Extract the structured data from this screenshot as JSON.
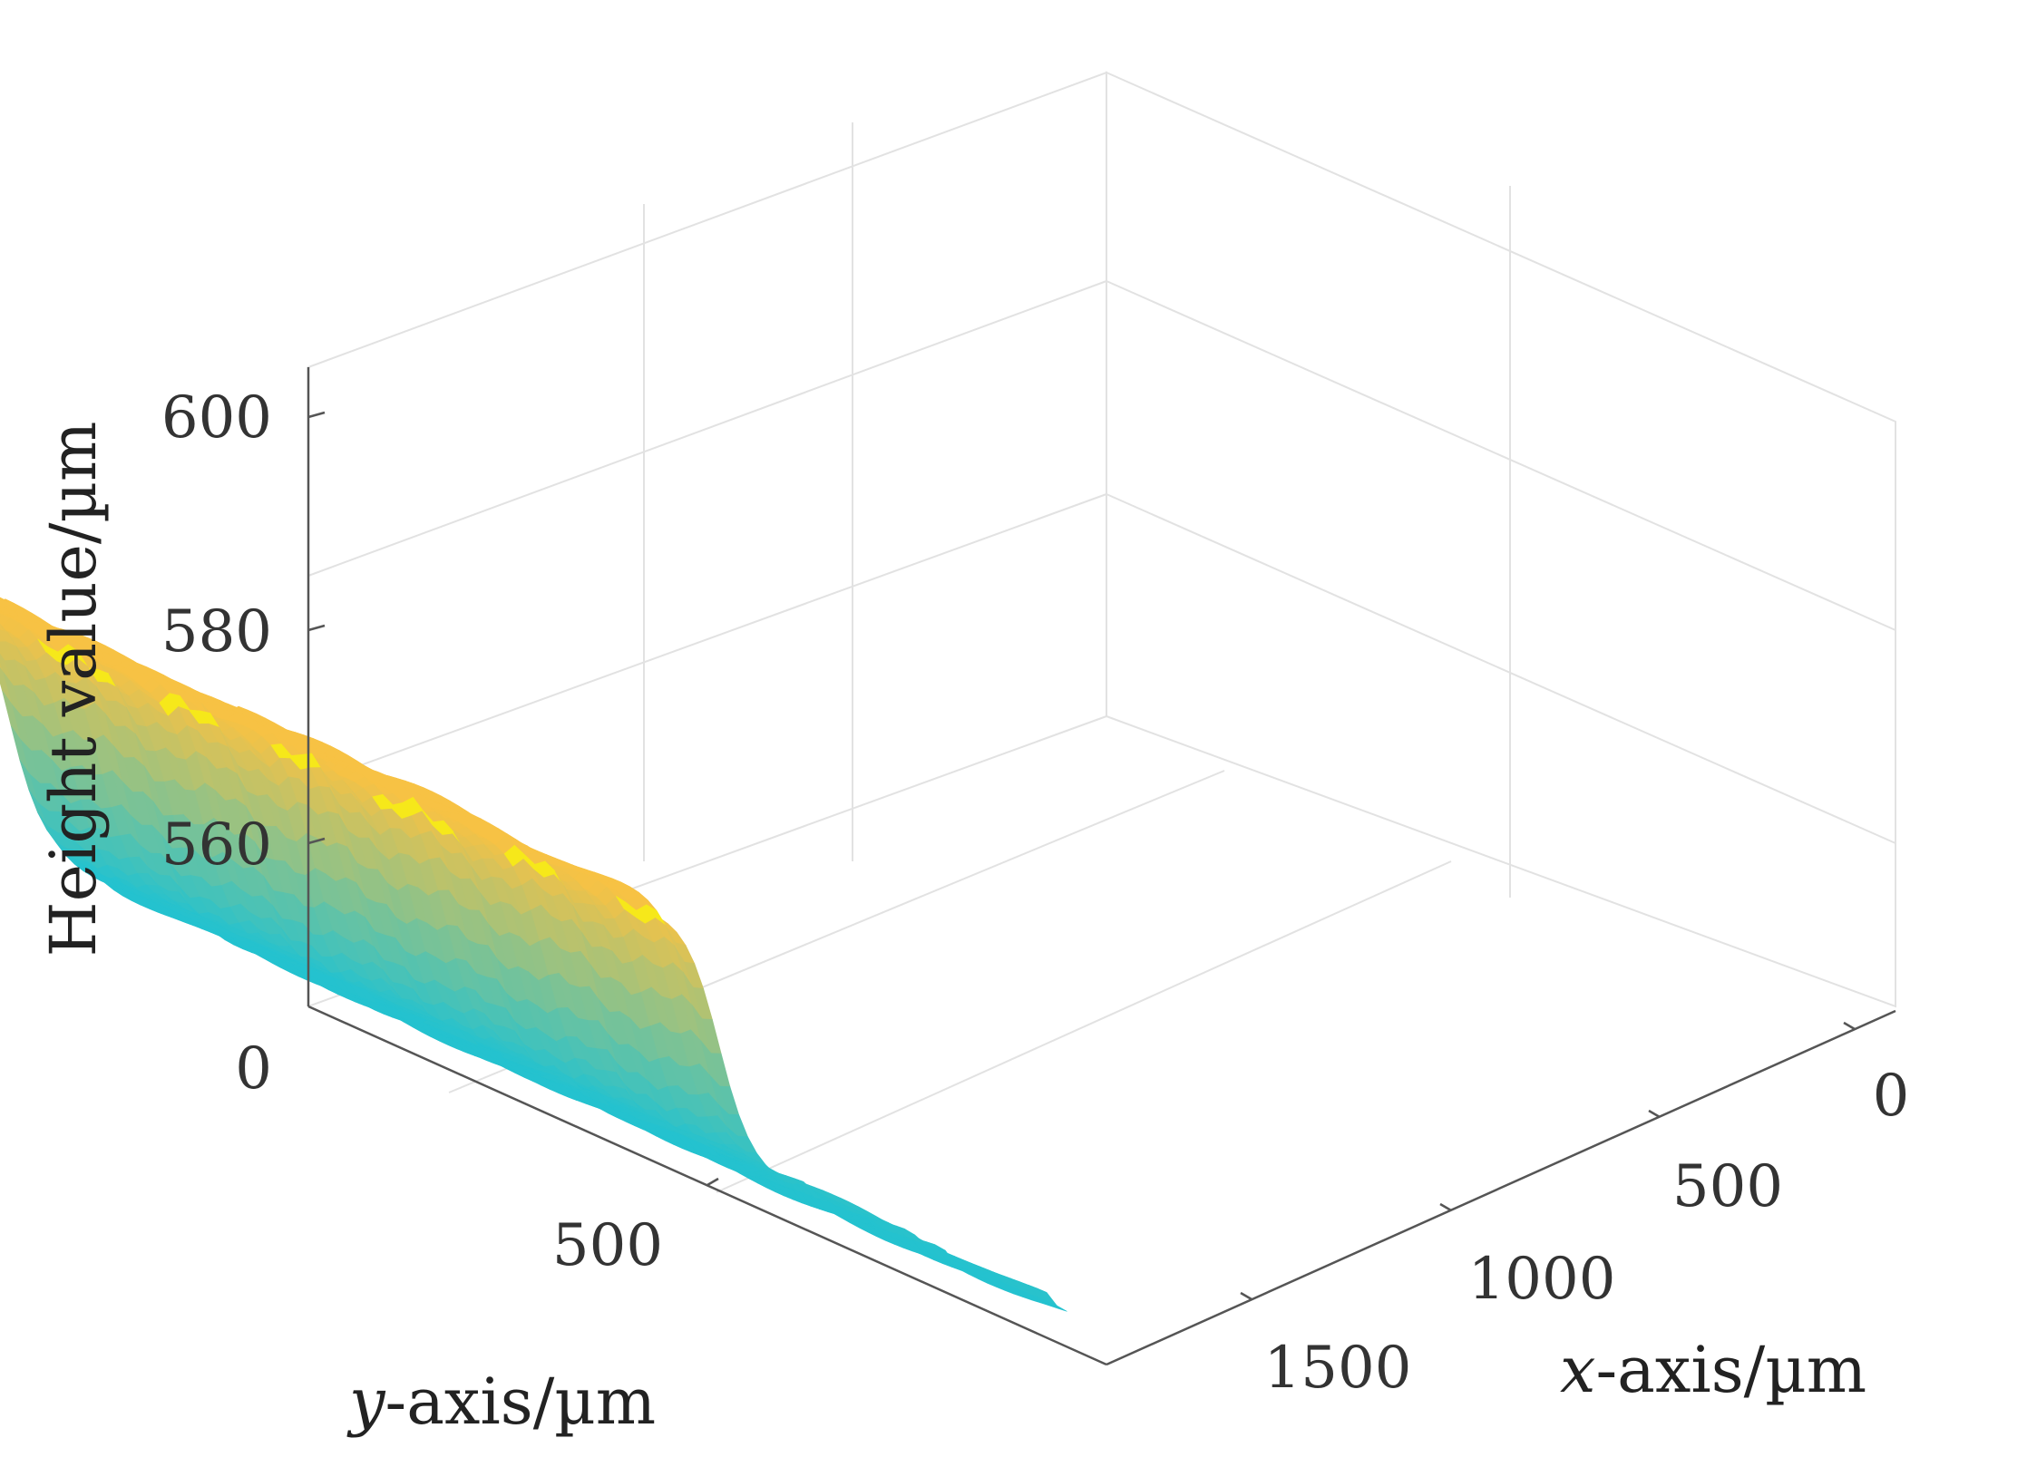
{
  "chart_data": {
    "type": "surface",
    "xlabel_var": "x",
    "xlabel_rest": "-axis/µm",
    "ylabel_var": "y",
    "ylabel_rest": "-axis/µm",
    "zlabel": "Height value/µm",
    "x_ticks": [
      "0",
      "500",
      "1000",
      "1500"
    ],
    "y_ticks": [
      "500"
    ],
    "z_ticks": [
      "0",
      "560",
      "580",
      "600"
    ],
    "xlim": [
      0,
      1600
    ],
    "ylim": [
      0,
      1100
    ],
    "zlim": [
      545,
      605
    ],
    "grid": true,
    "surface": {
      "y_step_at": 620,
      "low_plateau_height": 551,
      "high_plateau_height": 587,
      "high_colour": "#f7c244",
      "low_colour": "#24c2cf",
      "edge_colour": "#f6e81a"
    }
  }
}
